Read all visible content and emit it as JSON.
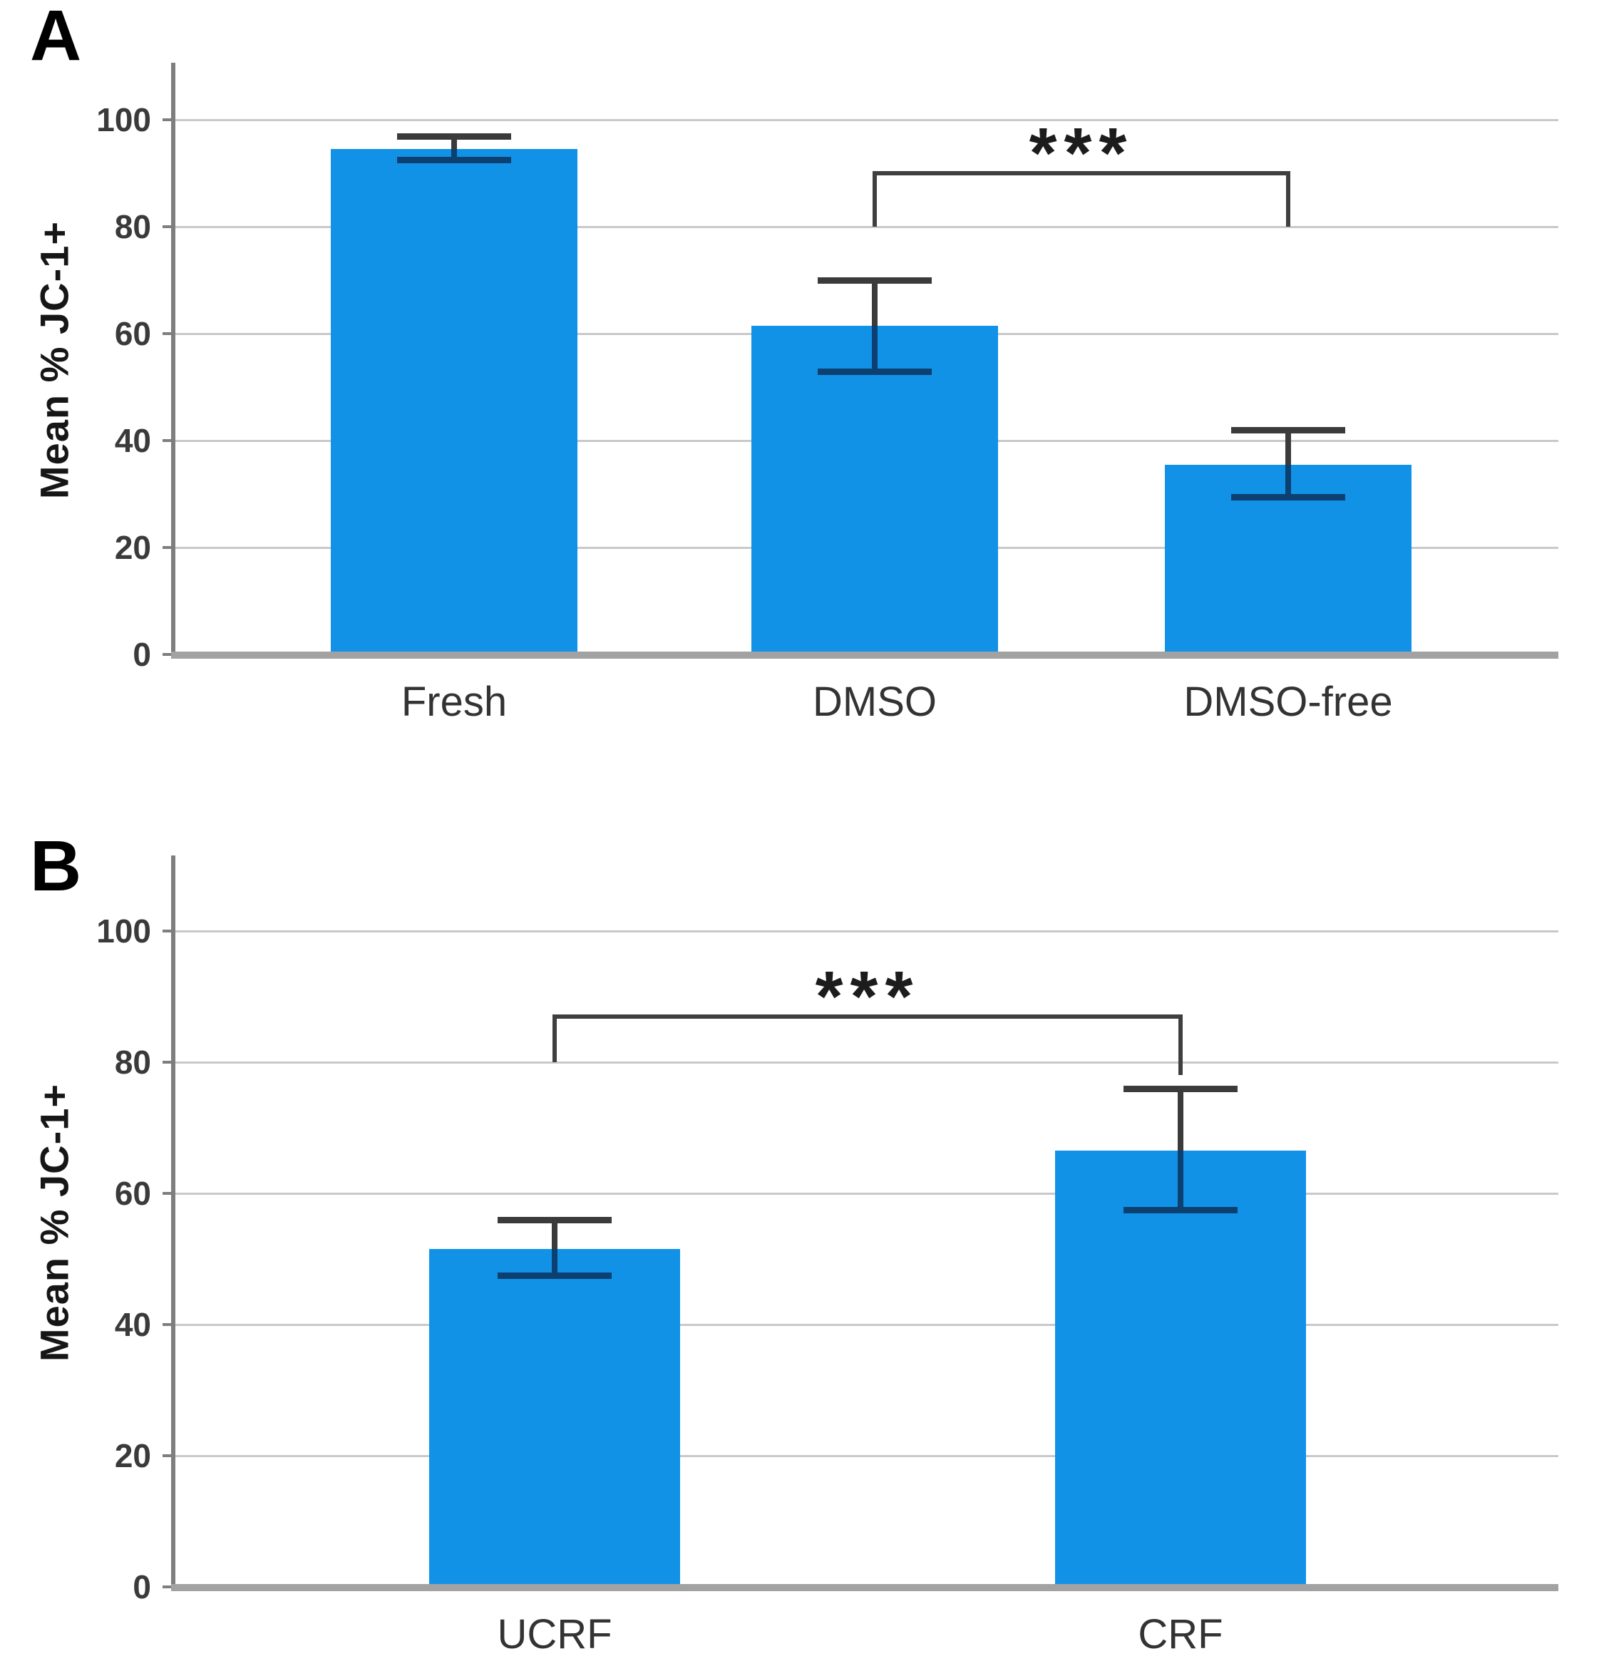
{
  "colors": {
    "bar_fill": "#1292E7",
    "error_bar_dark": "#3B3B3B",
    "error_bar_inside_navy": "#0B4070",
    "gridline": "#C9C9C9",
    "y_axis_line": "#7E7E7E",
    "x_axis_line": "#A2A2A2",
    "tick_text": "#3A3A3A",
    "category_text": "#333333",
    "panel_letter_text": "#000000",
    "significance_text": "#1C1C1C"
  },
  "chart_data": [
    {
      "panel": "A",
      "type": "bar",
      "ylabel": "Mean % JC-1+",
      "xlabel": "",
      "categories": [
        "Fresh",
        "DMSO",
        "DMSO-free"
      ],
      "values": [
        94.5,
        61.5,
        35.5
      ],
      "error_low": [
        92.5,
        53,
        29.5
      ],
      "error_high": [
        97,
        70,
        42
      ],
      "yticks": [
        0,
        20,
        40,
        60,
        80,
        100
      ],
      "ylim": [
        0,
        110
      ],
      "grid": true,
      "significance": {
        "label": "***",
        "from_category": "DMSO",
        "to_category": "DMSO-free",
        "from": 1,
        "to": 2,
        "bracket_value": 90,
        "drop_left_value": 80,
        "drop_right_value": 80
      }
    },
    {
      "panel": "B",
      "type": "bar",
      "ylabel": "Mean % JC-1+",
      "xlabel": "",
      "categories": [
        "UCRF",
        "CRF"
      ],
      "values": [
        51.5,
        66.5
      ],
      "error_low": [
        47.5,
        57.5
      ],
      "error_high": [
        56,
        76
      ],
      "yticks": [
        0,
        20,
        40,
        60,
        80,
        100
      ],
      "ylim": [
        0,
        110
      ],
      "grid": true,
      "significance": {
        "label": "***",
        "from_category": "UCRF",
        "to_category": "CRF",
        "from": 0,
        "to": 1,
        "bracket_value": 87,
        "drop_left_value": 80,
        "drop_right_value": 78
      }
    }
  ]
}
